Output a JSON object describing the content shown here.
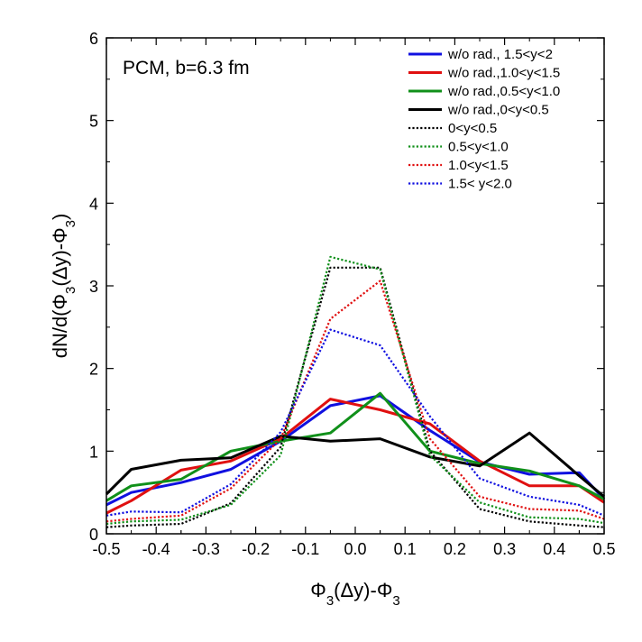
{
  "chart_data": {
    "type": "line",
    "annotation": "PCM, b=6.3 fm",
    "xlabel": "Φ3(Δy)-Φ3",
    "ylabel": "dN/d(Φ3(Δy)-Φ3)",
    "xlim": [
      -0.5,
      0.5
    ],
    "ylim": [
      0,
      6
    ],
    "xticks": [
      "-0.5",
      "-0.4",
      "-0.3",
      "-0.2",
      "-0.1",
      "0.0",
      "0.1",
      "0.2",
      "0.3",
      "0.4",
      "0.5"
    ],
    "yticks": [
      "0",
      "1",
      "2",
      "3",
      "4",
      "5",
      "6"
    ],
    "grid": false,
    "legend_position": "top-right",
    "x": [
      -0.5,
      -0.45,
      -0.35,
      -0.25,
      -0.15,
      -0.05,
      0.05,
      0.15,
      0.25,
      0.35,
      0.45,
      0.5
    ],
    "series": [
      {
        "name": "w/o rad., 1.5<y<2",
        "color": "#1010e0",
        "dash": "solid",
        "values": [
          0.35,
          0.5,
          0.62,
          0.78,
          1.12,
          1.55,
          1.67,
          1.25,
          0.87,
          0.72,
          0.74,
          0.42
        ]
      },
      {
        "name": "w/o rad.,1.0<y<1.5",
        "color": "#e01010",
        "dash": "solid",
        "values": [
          0.25,
          0.4,
          0.77,
          0.88,
          1.15,
          1.63,
          1.5,
          1.33,
          0.88,
          0.58,
          0.58,
          0.38
        ]
      },
      {
        "name": "w/o rad.,0.5<y<1.0",
        "color": "#10901a",
        "dash": "solid",
        "values": [
          0.4,
          0.58,
          0.66,
          1.0,
          1.12,
          1.22,
          1.7,
          1.0,
          0.85,
          0.76,
          0.58,
          0.42
        ]
      },
      {
        "name": "w/o rad.,0<y<0.5",
        "color": "#000000",
        "dash": "solid",
        "values": [
          0.48,
          0.78,
          0.89,
          0.92,
          1.18,
          1.12,
          1.15,
          0.93,
          0.82,
          1.22,
          0.7,
          0.45
        ]
      },
      {
        "name": "0<y<0.5",
        "color": "#000000",
        "dash": "dotted",
        "values": [
          0.08,
          0.1,
          0.12,
          0.37,
          1.05,
          3.22,
          3.22,
          1.0,
          0.3,
          0.15,
          0.1,
          0.08
        ]
      },
      {
        "name": "0.5<y<1.0",
        "color": "#10901a",
        "dash": "dotted",
        "values": [
          0.12,
          0.15,
          0.17,
          0.35,
          0.95,
          3.35,
          3.2,
          0.95,
          0.38,
          0.2,
          0.18,
          0.13
        ]
      },
      {
        "name": "1.0<y<1.5",
        "color": "#e01010",
        "dash": "dotted",
        "values": [
          0.15,
          0.18,
          0.22,
          0.55,
          1.15,
          2.6,
          3.06,
          1.15,
          0.45,
          0.3,
          0.28,
          0.18
        ]
      },
      {
        "name": "1.5< y<2.0",
        "color": "#1010e0",
        "dash": "dotted",
        "values": [
          0.22,
          0.27,
          0.26,
          0.6,
          1.23,
          2.47,
          2.28,
          1.42,
          0.67,
          0.45,
          0.35,
          0.22
        ]
      }
    ]
  }
}
